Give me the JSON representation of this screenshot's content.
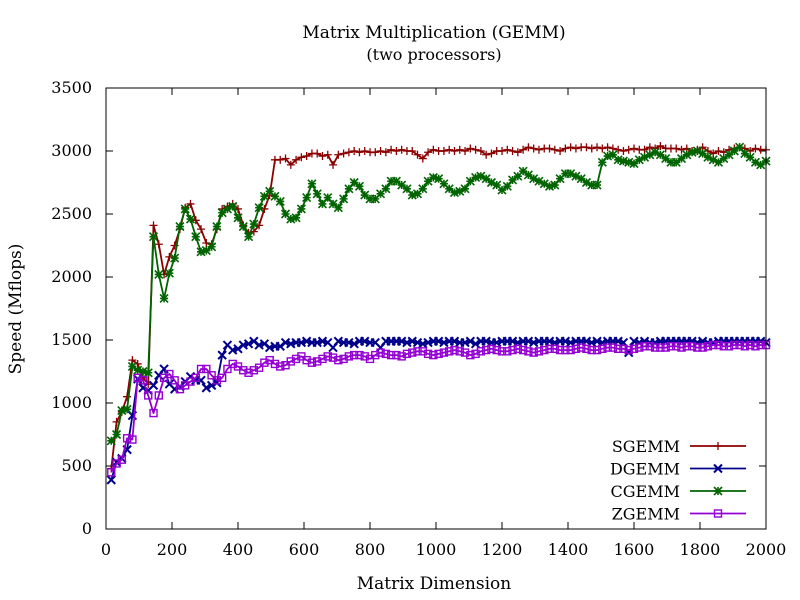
{
  "chart_data": {
    "type": "line",
    "title": "Matrix Multiplication (GEMM)",
    "subtitle": "(two processors)",
    "xlabel": "Matrix Dimension",
    "ylabel": "Speed (Mflops)",
    "xlim": [
      0,
      2000
    ],
    "ylim": [
      0,
      3500
    ],
    "xticks": [
      0,
      200,
      400,
      600,
      800,
      1000,
      1200,
      1400,
      1600,
      1800,
      2000
    ],
    "yticks": [
      0,
      500,
      1000,
      1500,
      2000,
      2500,
      3000,
      3500
    ],
    "grid": false,
    "legend": "bottom-right",
    "x": [
      16,
      32,
      48,
      64,
      80,
      96,
      112,
      128,
      144,
      160,
      176,
      192,
      208,
      224,
      240,
      256,
      272,
      288,
      304,
      320,
      336,
      352,
      368,
      384,
      400,
      416,
      432,
      448,
      464,
      480,
      496,
      512,
      528,
      544,
      560,
      576,
      592,
      608,
      624,
      640,
      656,
      672,
      688,
      704,
      720,
      736,
      752,
      768,
      784,
      800,
      816,
      832,
      848,
      864,
      880,
      896,
      912,
      928,
      944,
      960,
      976,
      992,
      1008,
      1024,
      1040,
      1056,
      1072,
      1088,
      1104,
      1120,
      1136,
      1152,
      1168,
      1184,
      1200,
      1216,
      1232,
      1248,
      1264,
      1280,
      1296,
      1312,
      1328,
      1344,
      1360,
      1376,
      1392,
      1408,
      1424,
      1440,
      1456,
      1472,
      1488,
      1504,
      1520,
      1536,
      1552,
      1568,
      1584,
      1600,
      1616,
      1632,
      1648,
      1664,
      1680,
      1696,
      1712,
      1728,
      1744,
      1760,
      1776,
      1792,
      1808,
      1824,
      1840,
      1856,
      1872,
      1888,
      1904,
      1920,
      1936,
      1952,
      1968,
      1984,
      2000
    ],
    "series": [
      {
        "name": "SGEMM",
        "color": "#8b0000",
        "marker": "plus",
        "values": [
          480,
          850,
          930,
          1050,
          1340,
          1310,
          1200,
          1150,
          2410,
          2260,
          2020,
          2160,
          2250,
          2380,
          2550,
          2580,
          2450,
          2380,
          2270,
          2260,
          2380,
          2540,
          2560,
          2580,
          2540,
          2410,
          2350,
          2360,
          2410,
          2540,
          2650,
          2930,
          2930,
          2940,
          2890,
          2930,
          2950,
          2960,
          2980,
          2980,
          2960,
          2970,
          2890,
          2970,
          2980,
          2990,
          3000,
          2990,
          3000,
          2990,
          2990,
          3000,
          2990,
          3010,
          3000,
          3010,
          3000,
          3000,
          2970,
          2940,
          2990,
          3010,
          3000,
          3000,
          3010,
          3000,
          3010,
          3000,
          3020,
          3010,
          3000,
          2970,
          2980,
          3000,
          3000,
          3010,
          3000,
          2990,
          3010,
          3030,
          3020,
          3010,
          3020,
          3020,
          3010,
          3000,
          3020,
          3030,
          3020,
          3030,
          3030,
          3020,
          3030,
          3020,
          3030,
          3020,
          3010,
          3000,
          3010,
          3020,
          3010,
          3010,
          3030,
          3020,
          3040,
          3020,
          3020,
          3020,
          3010,
          3020,
          3000,
          3010,
          3030,
          3000,
          2980,
          3000,
          2990,
          3010,
          3020,
          3030,
          3020,
          3000,
          3020,
          3010,
          3010
        ]
      },
      {
        "name": "DGEMM",
        "color": "#00008b",
        "marker": "cross",
        "values": [
          390,
          530,
          560,
          630,
          900,
          1190,
          1120,
          1100,
          1140,
          1220,
          1270,
          1150,
          1110,
          1130,
          1170,
          1210,
          1180,
          1180,
          1120,
          1140,
          1160,
          1380,
          1460,
          1420,
          1430,
          1460,
          1470,
          1490,
          1460,
          1470,
          1440,
          1450,
          1450,
          1480,
          1470,
          1480,
          1480,
          1490,
          1480,
          1480,
          1490,
          1480,
          1440,
          1490,
          1480,
          1480,
          1470,
          1490,
          1490,
          1480,
          1480,
          1440,
          1490,
          1490,
          1490,
          1490,
          1480,
          1490,
          1480,
          1470,
          1480,
          1490,
          1490,
          1480,
          1490,
          1490,
          1480,
          1480,
          1490,
          1470,
          1490,
          1490,
          1480,
          1480,
          1490,
          1490,
          1490,
          1480,
          1490,
          1490,
          1480,
          1490,
          1490,
          1490,
          1480,
          1490,
          1490,
          1480,
          1490,
          1490,
          1490,
          1480,
          1490,
          1480,
          1490,
          1490,
          1490,
          1480,
          1400,
          1490,
          1480,
          1490,
          1480,
          1480,
          1490,
          1490,
          1490,
          1490,
          1490,
          1490,
          1490,
          1480,
          1490,
          1480,
          1480,
          1490,
          1490,
          1490,
          1490,
          1490,
          1490,
          1490,
          1490,
          1490,
          1480
        ]
      },
      {
        "name": "CGEMM",
        "color": "#006400",
        "marker": "star",
        "values": [
          700,
          750,
          940,
          950,
          1290,
          1260,
          1250,
          1240,
          2320,
          2020,
          1830,
          2030,
          2150,
          2400,
          2540,
          2460,
          2320,
          2200,
          2210,
          2240,
          2400,
          2510,
          2540,
          2560,
          2470,
          2400,
          2320,
          2420,
          2550,
          2640,
          2680,
          2640,
          2600,
          2500,
          2460,
          2470,
          2540,
          2630,
          2740,
          2660,
          2580,
          2630,
          2580,
          2550,
          2620,
          2700,
          2750,
          2720,
          2650,
          2620,
          2620,
          2660,
          2700,
          2760,
          2760,
          2730,
          2700,
          2650,
          2660,
          2700,
          2760,
          2790,
          2780,
          2740,
          2700,
          2670,
          2680,
          2700,
          2760,
          2790,
          2800,
          2780,
          2750,
          2730,
          2690,
          2720,
          2770,
          2800,
          2840,
          2810,
          2780,
          2760,
          2740,
          2720,
          2730,
          2780,
          2820,
          2820,
          2800,
          2780,
          2750,
          2730,
          2730,
          2910,
          2960,
          2970,
          2930,
          2920,
          2910,
          2900,
          2930,
          2950,
          2970,
          2990,
          2970,
          2940,
          2910,
          2910,
          2940,
          2970,
          2990,
          3000,
          2980,
          2950,
          2930,
          2910,
          2940,
          2970,
          3000,
          3030,
          2980,
          2950,
          2910,
          2890,
          2920
        ]
      },
      {
        "name": "ZGEMM",
        "color": "#9400d3",
        "marker": "square",
        "values": [
          450,
          520,
          550,
          720,
          710,
          1200,
          1180,
          1060,
          920,
          1060,
          1200,
          1230,
          1180,
          1110,
          1140,
          1170,
          1200,
          1270,
          1270,
          1220,
          1180,
          1200,
          1270,
          1310,
          1290,
          1260,
          1240,
          1260,
          1280,
          1320,
          1340,
          1310,
          1290,
          1300,
          1330,
          1350,
          1370,
          1340,
          1320,
          1330,
          1350,
          1370,
          1360,
          1340,
          1350,
          1370,
          1380,
          1380,
          1370,
          1350,
          1380,
          1400,
          1390,
          1380,
          1380,
          1370,
          1390,
          1400,
          1410,
          1410,
          1390,
          1380,
          1390,
          1400,
          1410,
          1420,
          1410,
          1400,
          1380,
          1390,
          1410,
          1420,
          1430,
          1420,
          1410,
          1410,
          1420,
          1430,
          1420,
          1410,
          1400,
          1410,
          1420,
          1430,
          1430,
          1420,
          1420,
          1420,
          1430,
          1440,
          1430,
          1420,
          1420,
          1430,
          1440,
          1440,
          1430,
          1430,
          1420,
          1430,
          1440,
          1450,
          1450,
          1440,
          1440,
          1440,
          1450,
          1450,
          1440,
          1450,
          1450,
          1440,
          1440,
          1450,
          1460,
          1460,
          1450,
          1450,
          1460,
          1460,
          1450,
          1460,
          1450,
          1460,
          1460
        ]
      }
    ]
  }
}
